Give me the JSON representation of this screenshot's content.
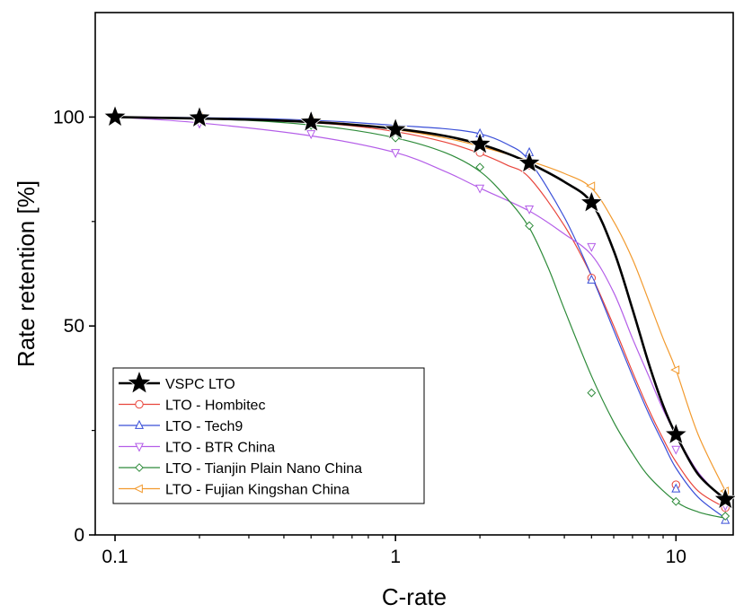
{
  "chart_data": {
    "type": "scatter",
    "title": "",
    "xlabel": "C-rate",
    "ylabel": "Rate retention [%]",
    "xscale": "log",
    "xlim": [
      0.085,
      16
    ],
    "ylim": [
      0,
      125
    ],
    "xticks": [
      0.1,
      1,
      10
    ],
    "xtick_labels": [
      "0.1",
      "1",
      "10"
    ],
    "yticks": [
      0,
      50,
      100
    ],
    "ytick_labels": [
      "0",
      "50",
      "100"
    ],
    "grid": false,
    "legend_position": "bottom-left",
    "series": [
      {
        "name": "VSPC LTO",
        "color": "#000000",
        "marker": "star",
        "x": [
          0.1,
          0.2,
          0.5,
          1,
          2,
          3,
          5,
          10,
          15
        ],
        "y": [
          100,
          99.8,
          98.8,
          97,
          93.5,
          89,
          79.5,
          24,
          8.5
        ],
        "fit": [
          [
            0.1,
            100
          ],
          [
            0.3,
            99.4
          ],
          [
            0.6,
            98.5
          ],
          [
            1,
            97.2
          ],
          [
            1.5,
            95.5
          ],
          [
            2,
            93.5
          ],
          [
            2.5,
            91.3
          ],
          [
            3,
            89
          ],
          [
            4,
            84.5
          ],
          [
            5,
            79.5
          ],
          [
            6,
            68
          ],
          [
            7,
            54
          ],
          [
            8,
            41
          ],
          [
            9,
            31
          ],
          [
            10,
            24
          ],
          [
            12,
            14.5
          ],
          [
            15,
            8.5
          ]
        ]
      },
      {
        "name": "LTO - Hombitec",
        "color": "#e8453c",
        "marker": "circle",
        "x": [
          0.1,
          0.2,
          0.5,
          1,
          2,
          3,
          5,
          10,
          15
        ],
        "y": [
          100,
          99.5,
          98.5,
          96.5,
          91.5,
          88.5,
          61.5,
          12,
          6.5
        ],
        "fit": [
          [
            0.1,
            100
          ],
          [
            0.3,
            99.3
          ],
          [
            0.6,
            98.3
          ],
          [
            1,
            96.5
          ],
          [
            1.5,
            94
          ],
          [
            2,
            91.3
          ],
          [
            2.5,
            88.5
          ],
          [
            3,
            85.5
          ],
          [
            4,
            74
          ],
          [
            5,
            62
          ],
          [
            6,
            50
          ],
          [
            7,
            39
          ],
          [
            8,
            30
          ],
          [
            9,
            23
          ],
          [
            10,
            17.5
          ],
          [
            12,
            10.5
          ],
          [
            15,
            6.5
          ]
        ]
      },
      {
        "name": "LTO - Tech9",
        "color": "#3a4fd8",
        "marker": "triangle-up",
        "x": [
          0.1,
          0.2,
          0.5,
          1,
          2,
          3,
          5,
          10,
          15
        ],
        "y": [
          100,
          100,
          99,
          98,
          96,
          91.5,
          61,
          11,
          3.5
        ],
        "fit": [
          [
            0.1,
            100
          ],
          [
            0.3,
            99.7
          ],
          [
            0.6,
            99
          ],
          [
            1,
            98
          ],
          [
            1.5,
            97.2
          ],
          [
            2,
            96
          ],
          [
            2.5,
            93.5
          ],
          [
            3,
            89.5
          ],
          [
            4,
            76
          ],
          [
            5,
            62
          ],
          [
            6,
            49
          ],
          [
            7,
            38
          ],
          [
            8,
            29
          ],
          [
            9,
            22
          ],
          [
            10,
            16
          ],
          [
            12,
            9
          ],
          [
            15,
            4
          ]
        ]
      },
      {
        "name": "LTO - BTR China",
        "color": "#b45ee8",
        "marker": "triangle-down",
        "x": [
          0.1,
          0.2,
          0.5,
          1,
          2,
          3,
          5,
          10,
          15
        ],
        "y": [
          100,
          98.5,
          96,
          91.5,
          83,
          78,
          69,
          20.5,
          7
        ],
        "fit": [
          [
            0.1,
            100
          ],
          [
            0.2,
            98.6
          ],
          [
            0.5,
            95.5
          ],
          [
            1,
            91.5
          ],
          [
            1.5,
            87
          ],
          [
            2,
            83
          ],
          [
            3,
            77.5
          ],
          [
            4,
            72
          ],
          [
            5,
            67
          ],
          [
            6,
            58
          ],
          [
            7,
            47
          ],
          [
            8,
            38
          ],
          [
            9,
            30
          ],
          [
            10,
            24
          ],
          [
            12,
            15
          ],
          [
            15,
            8
          ]
        ]
      },
      {
        "name": "LTO - Tianjin Plain Nano China",
        "color": "#2e8b3a",
        "marker": "diamond",
        "x": [
          0.1,
          0.2,
          0.5,
          1,
          2,
          3,
          5,
          10,
          15
        ],
        "y": [
          100,
          99.5,
          98,
          95,
          88,
          74,
          34,
          8,
          4.5
        ],
        "fit": [
          [
            0.1,
            100
          ],
          [
            0.3,
            99.2
          ],
          [
            0.6,
            97.5
          ],
          [
            1,
            95
          ],
          [
            1.5,
            91.5
          ],
          [
            2,
            87
          ],
          [
            2.5,
            80.5
          ],
          [
            3,
            73.5
          ],
          [
            3.5,
            64
          ],
          [
            4,
            54
          ],
          [
            5,
            38
          ],
          [
            6,
            27
          ],
          [
            7,
            19.5
          ],
          [
            8,
            14
          ],
          [
            10,
            8
          ],
          [
            12,
            5.5
          ],
          [
            15,
            4
          ]
        ]
      },
      {
        "name": "LTO - Fujian Kingshan China",
        "color": "#f29a2e",
        "marker": "triangle-left",
        "x": [
          0.1,
          0.2,
          0.5,
          1,
          2,
          3,
          5,
          10,
          15
        ],
        "y": [
          100,
          100,
          99,
          97,
          93,
          89,
          83.5,
          39.5,
          10.5
        ],
        "fit": [
          [
            0.1,
            100
          ],
          [
            0.3,
            99.5
          ],
          [
            0.6,
            98.7
          ],
          [
            1,
            97
          ],
          [
            1.5,
            95
          ],
          [
            2,
            93
          ],
          [
            3,
            89.5
          ],
          [
            4,
            86.5
          ],
          [
            5,
            83
          ],
          [
            6,
            75
          ],
          [
            7,
            66
          ],
          [
            8,
            56
          ],
          [
            9,
            47
          ],
          [
            10,
            39.5
          ],
          [
            12,
            24
          ],
          [
            15,
            10.5
          ]
        ]
      }
    ]
  }
}
